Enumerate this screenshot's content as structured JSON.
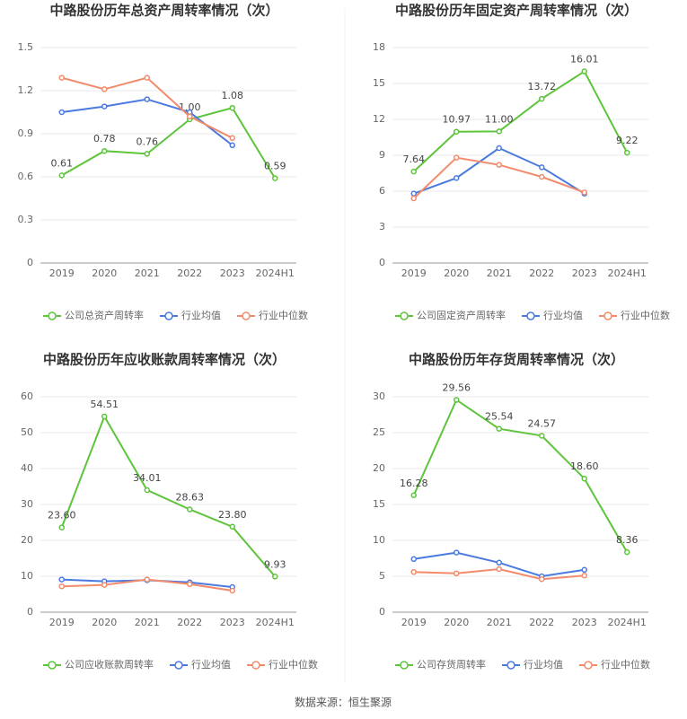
{
  "chart_data": [
    {
      "type": "line",
      "title": "中路股份历年总资产周转率情况（次）",
      "categories": [
        "2019",
        "2020",
        "2021",
        "2022",
        "2023",
        "2024H1"
      ],
      "series": [
        {
          "name": "公司总资产周转率",
          "color": "#5dc43c",
          "values": [
            0.61,
            0.78,
            0.76,
            1.0,
            1.08,
            0.59
          ],
          "value_labels": [
            "0.61",
            "0.78",
            "0.76",
            "1.00",
            "1.08",
            "0.59"
          ]
        },
        {
          "name": "行业均值",
          "color": "#4a7ae0",
          "values": [
            1.05,
            1.09,
            1.14,
            1.05,
            0.82,
            null
          ]
        },
        {
          "name": "行业中位数",
          "color": "#f28b6c",
          "values": [
            1.29,
            1.21,
            1.29,
            1.02,
            0.87,
            null
          ]
        }
      ],
      "ylim": [
        0,
        1.5
      ],
      "yticks": [
        0,
        0.3,
        0.6,
        0.9,
        1.2,
        1.5
      ],
      "grid": true,
      "legend": "bottom"
    },
    {
      "type": "line",
      "title": "中路股份历年固定资产周转率情况（次）",
      "categories": [
        "2019",
        "2020",
        "2021",
        "2022",
        "2023",
        "2024H1"
      ],
      "series": [
        {
          "name": "公司固定资产周转率",
          "color": "#5dc43c",
          "values": [
            7.64,
            10.97,
            11.0,
            13.72,
            16.01,
            9.22
          ],
          "value_labels": [
            "7.64",
            "10.97",
            "11.00",
            "13.72",
            "16.01",
            "9.22"
          ]
        },
        {
          "name": "行业均值",
          "color": "#4a7ae0",
          "values": [
            5.8,
            7.1,
            9.6,
            8.0,
            5.8,
            null
          ]
        },
        {
          "name": "行业中位数",
          "color": "#f28b6c",
          "values": [
            5.4,
            8.8,
            8.2,
            7.2,
            5.9,
            null
          ]
        }
      ],
      "ylim": [
        0,
        18
      ],
      "yticks": [
        0,
        3,
        6,
        9,
        12,
        15,
        18
      ],
      "grid": true,
      "legend": "bottom"
    },
    {
      "type": "line",
      "title": "中路股份历年应收账款周转率情况（次）",
      "categories": [
        "2019",
        "2020",
        "2021",
        "2022",
        "2023",
        "2024H1"
      ],
      "series": [
        {
          "name": "公司应收账款周转率",
          "color": "#5dc43c",
          "values": [
            23.6,
            54.51,
            34.01,
            28.63,
            23.8,
            9.93
          ],
          "value_labels": [
            "23.60",
            "54.51",
            "34.01",
            "28.63",
            "23.80",
            "9.93"
          ]
        },
        {
          "name": "行业均值",
          "color": "#4a7ae0",
          "values": [
            9.1,
            8.6,
            8.9,
            8.3,
            7.0,
            null
          ]
        },
        {
          "name": "行业中位数",
          "color": "#f28b6c",
          "values": [
            7.2,
            7.6,
            9.1,
            7.8,
            6.0,
            null
          ]
        }
      ],
      "ylim": [
        0,
        60
      ],
      "yticks": [
        0,
        10,
        20,
        30,
        40,
        50,
        60
      ],
      "grid": true,
      "legend": "bottom"
    },
    {
      "type": "line",
      "title": "中路股份历年存货周转率情况（次）",
      "categories": [
        "2019",
        "2020",
        "2021",
        "2022",
        "2023",
        "2024H1"
      ],
      "series": [
        {
          "name": "公司存货周转率",
          "color": "#5dc43c",
          "values": [
            16.28,
            29.56,
            25.54,
            24.57,
            18.6,
            8.36
          ],
          "value_labels": [
            "16.28",
            "29.56",
            "25.54",
            "24.57",
            "18.60",
            "8.36"
          ]
        },
        {
          "name": "行业均值",
          "color": "#4a7ae0",
          "values": [
            7.4,
            8.3,
            6.9,
            5.0,
            5.9,
            null
          ]
        },
        {
          "name": "行业中位数",
          "color": "#f28b6c",
          "values": [
            5.6,
            5.4,
            6.0,
            4.6,
            5.1,
            null
          ]
        }
      ],
      "ylim": [
        0,
        30
      ],
      "yticks": [
        0,
        5,
        10,
        15,
        20,
        25,
        30
      ],
      "grid": true,
      "legend": "bottom"
    }
  ],
  "source": "数据来源：恒生聚源"
}
